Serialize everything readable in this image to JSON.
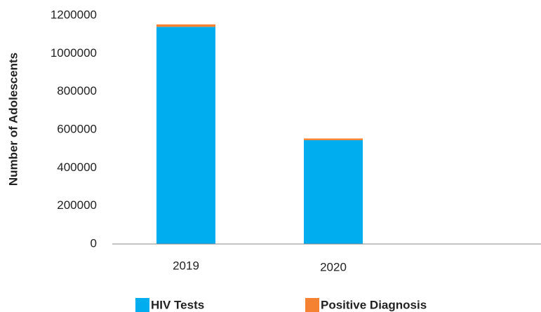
{
  "chart_data": {
    "type": "bar",
    "stacked": true,
    "y_label": "Number of Adolescents",
    "categories": [
      "2019",
      "2020",
      null
    ],
    "series": [
      {
        "name": "HIV Tests",
        "color": "#00aeef",
        "values": [
          1140000,
          545000,
          null
        ]
      },
      {
        "name": "Positive Diagnosis",
        "color": "#f58233",
        "values": [
          13000,
          9000,
          null
        ]
      }
    ],
    "ylim": [
      0,
      1200000
    ],
    "yticks": [
      0,
      200000,
      400000,
      600000,
      800000,
      1000000,
      1200000
    ],
    "grid": false,
    "legend": "bottom"
  }
}
